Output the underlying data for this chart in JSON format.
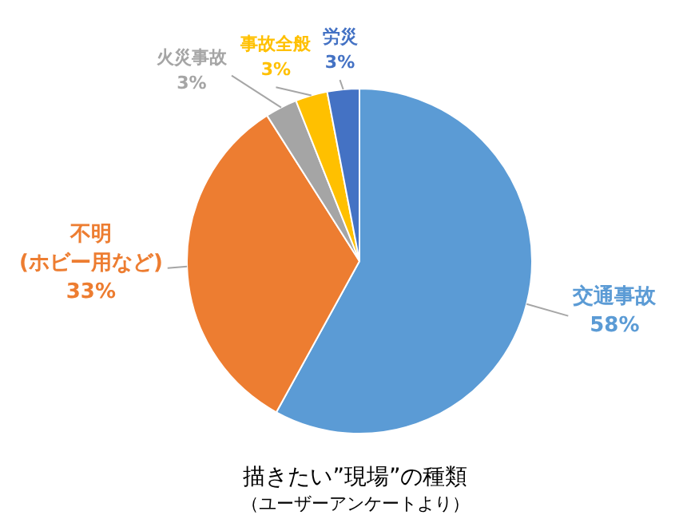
{
  "chart_data": {
    "type": "pie",
    "title": "描きたい”現場”の種類",
    "subtitle": "（ユーザーアンケートより）",
    "categories": [
      "交通事故",
      "不明\n(ホビー用など)",
      "火災事故",
      "事故全般",
      "労災"
    ],
    "values": [
      58,
      33,
      3,
      3,
      3
    ],
    "colors": [
      "#5b9bd5",
      "#ed7d31",
      "#a5a5a5",
      "#ffc000",
      "#4472c4"
    ],
    "value_labels": [
      "58%",
      "33%",
      "3%",
      "3%",
      "3%"
    ],
    "legend": false
  }
}
